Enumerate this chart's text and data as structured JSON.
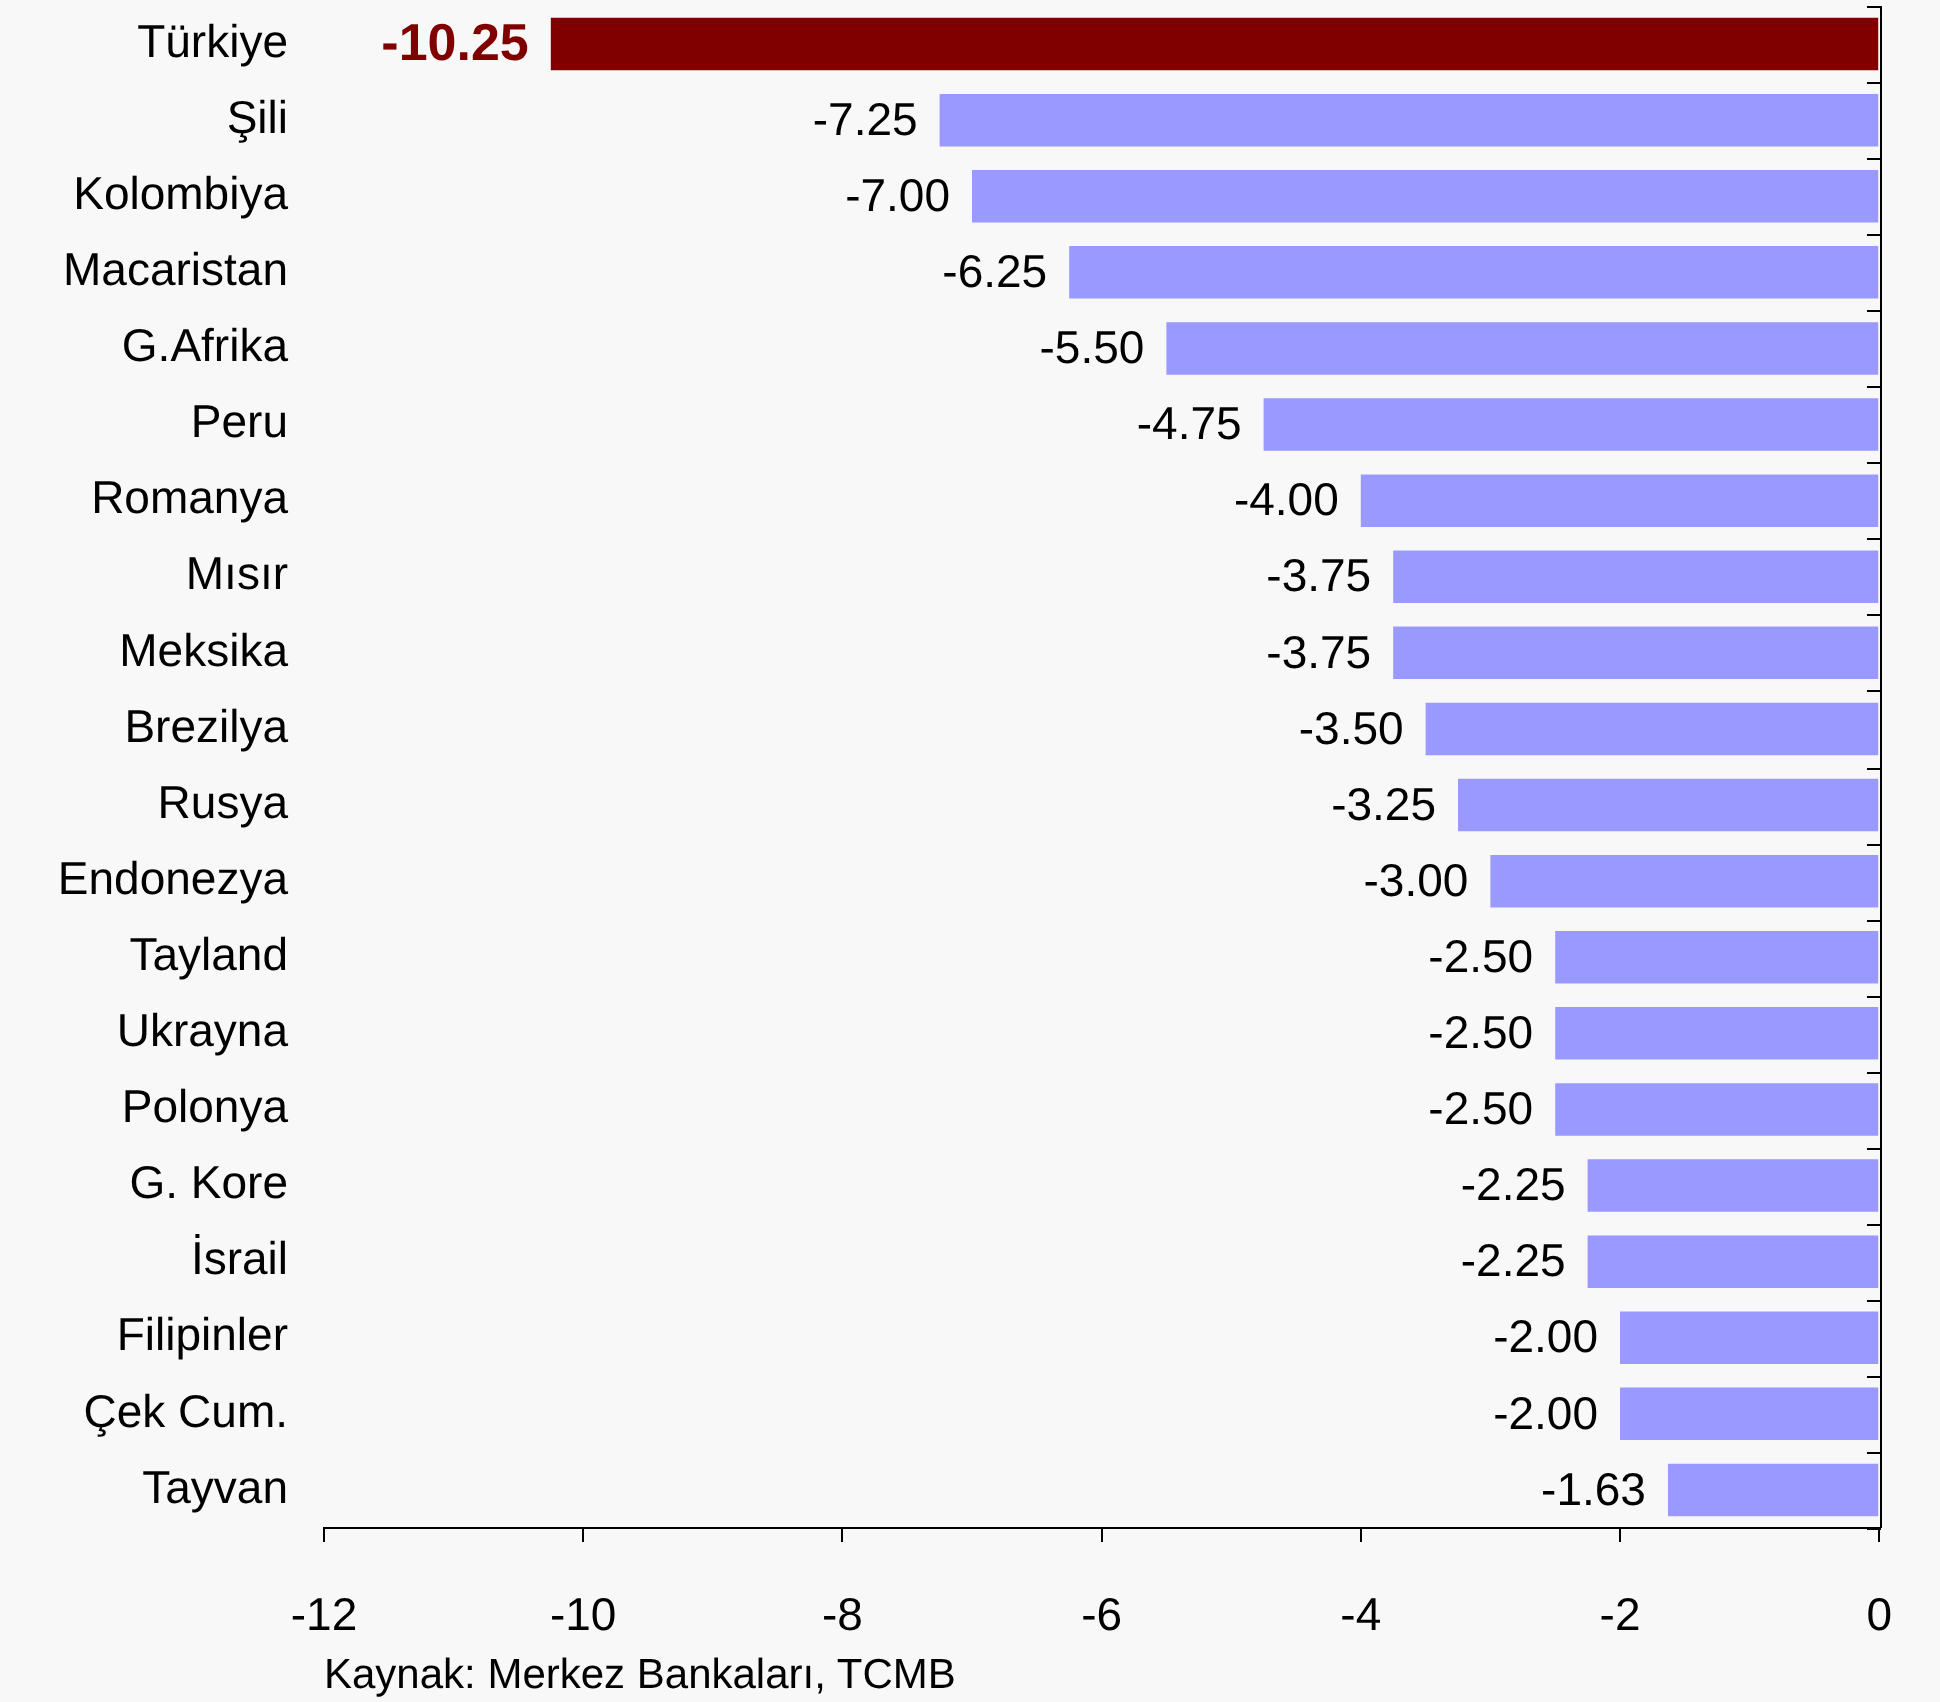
{
  "chart_data": {
    "type": "bar",
    "orientation": "horizontal",
    "categories": [
      "Türkiye",
      "Şili",
      "Kolombiya",
      "Macaristan",
      "G.Afrika",
      "Peru",
      "Romanya",
      "Mısır",
      "Meksika",
      "Brezilya",
      "Rusya",
      "Endonezya",
      "Tayland",
      "Ukrayna",
      "Polonya",
      "G. Kore",
      "İsrail",
      "Filipinler",
      "Çek Cum.",
      "Tayvan"
    ],
    "values": [
      -10.25,
      -7.25,
      -7,
      -6.25,
      -5.5,
      -4.75,
      -4,
      -3.75,
      -3.75,
      -3.5,
      -3.25,
      -3,
      -2.5,
      -2.5,
      -2.5,
      -2.25,
      -2.25,
      -2,
      -2,
      -1.63
    ],
    "value_labels": [
      "-10.25",
      "-7.25",
      "-7.00",
      "-6.25",
      "-5.50",
      "-4.75",
      "-4.00",
      "-3.75",
      "-3.75",
      "-3.50",
      "-3.25",
      "-3.00",
      "-2.50",
      "-2.50",
      "-2.50",
      "-2.25",
      "-2.25",
      "-2.00",
      "-2.00",
      "-1.63"
    ],
    "colors": [
      "#800000",
      "#9999ff",
      "#9999ff",
      "#9999ff",
      "#9999ff",
      "#9999ff",
      "#9999ff",
      "#9999ff",
      "#9999ff",
      "#9999ff",
      "#9999ff",
      "#9999ff",
      "#9999ff",
      "#9999ff",
      "#9999ff",
      "#9999ff",
      "#9999ff",
      "#9999ff",
      "#9999ff",
      "#9999ff"
    ],
    "xlim": [
      -12,
      0
    ],
    "xticks": [
      -12,
      -10,
      -8,
      -6,
      -4,
      -2,
      0
    ],
    "annotations": [
      "Kaynak: Merkez Bankaları, TCMB"
    ]
  }
}
